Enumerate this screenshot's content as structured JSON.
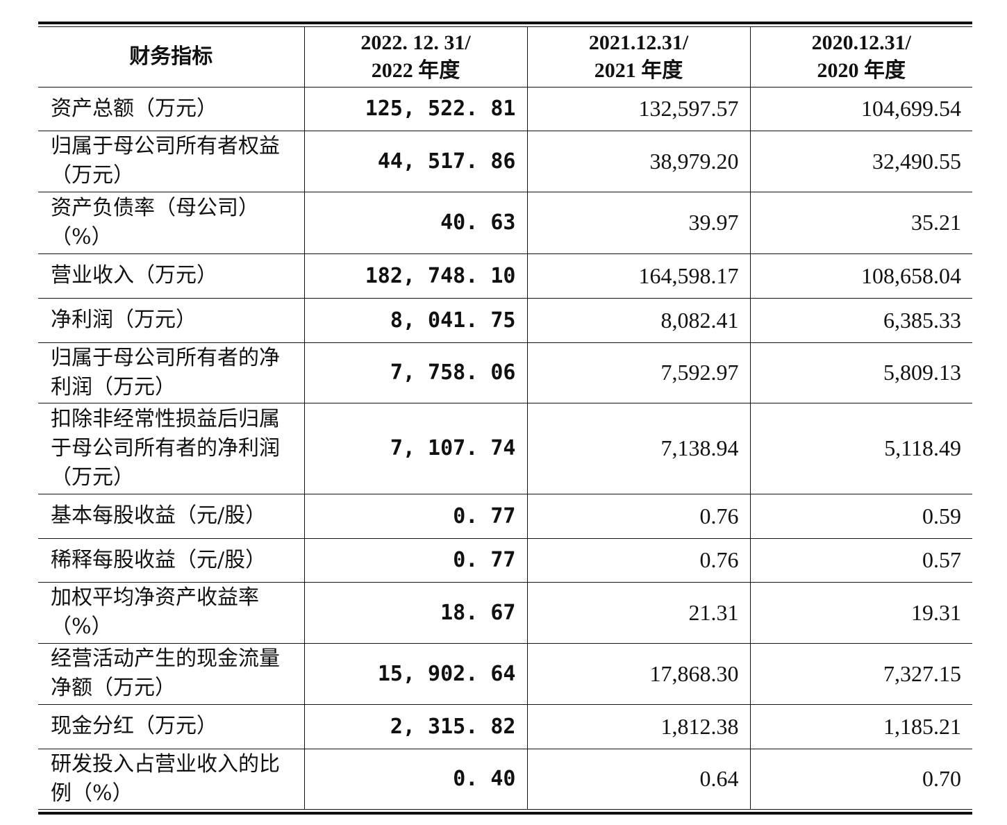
{
  "table": {
    "header": [
      "财务指标",
      "2022. 12. 31/\n2022 年度",
      "2021.12.31/\n2021 年度",
      "2020.12.31/\n2020 年度"
    ],
    "rows": [
      [
        "资产总额（万元）",
        "125, 522. 81",
        "132,597.57",
        "104,699.54"
      ],
      [
        "归属于母公司所有者权益（万元）",
        "44, 517. 86",
        "38,979.20",
        "32,490.55"
      ],
      [
        "资产负债率（母公司）（%）",
        "40. 63",
        "39.97",
        "35.21"
      ],
      [
        "营业收入（万元）",
        "182, 748. 10",
        "164,598.17",
        "108,658.04"
      ],
      [
        "净利润（万元）",
        "8, 041. 75",
        "8,082.41",
        "6,385.33"
      ],
      [
        "归属于母公司所有者的净利润（万元）",
        "7, 758. 06",
        "7,592.97",
        "5,809.13"
      ],
      [
        "扣除非经常性损益后归属于母公司所有者的净利润（万元）",
        "7, 107. 74",
        "7,138.94",
        "5,118.49"
      ],
      [
        "基本每股收益（元/股）",
        "0. 77",
        "0.76",
        "0.59"
      ],
      [
        "稀释每股收益（元/股）",
        "0. 77",
        "0.76",
        "0.57"
      ],
      [
        "加权平均净资产收益率（%）",
        "18. 67",
        "21.31",
        "19.31"
      ],
      [
        "经营活动产生的现金流量净额（万元）",
        "15, 902. 64",
        "17,868.30",
        "7,327.15"
      ],
      [
        "现金分红（万元）",
        "2, 315. 82",
        "1,812.38",
        "1,185.21"
      ],
      [
        "研发投入占营业收入的比例（%）",
        "0. 40",
        "0.64",
        "0.70"
      ]
    ]
  }
}
